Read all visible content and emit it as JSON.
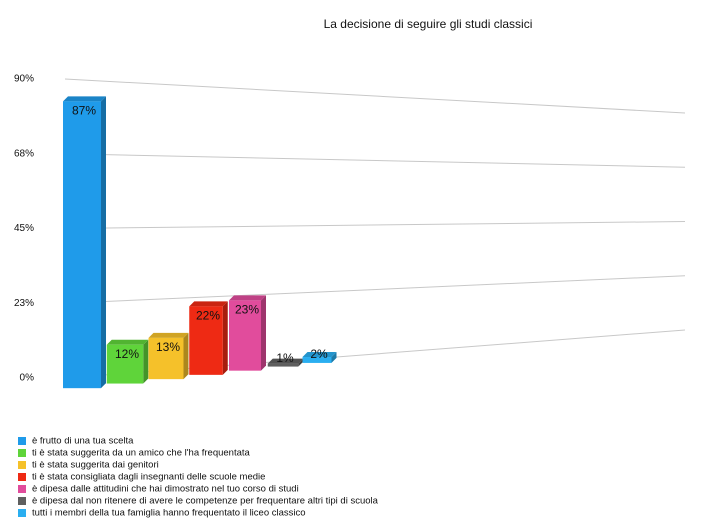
{
  "chart_data": {
    "type": "bar",
    "title": "La decisione di seguire gli studi classici",
    "ylim": [
      0,
      90
    ],
    "yticks": [
      {
        "value": 0,
        "label": "0%"
      },
      {
        "value": 22.5,
        "label": "23%"
      },
      {
        "value": 45,
        "label": "45%"
      },
      {
        "value": 67.5,
        "label": "68%"
      },
      {
        "value": 90,
        "label": "90%"
      }
    ],
    "grid": true,
    "legend": "bottom-left",
    "series": [
      {
        "name": "è frutto di una tua scelta",
        "color": "#1f9bea",
        "values": [
          87
        ],
        "value_labels": [
          "87%"
        ]
      },
      {
        "name": "ti è stata suggerita da un amico che l'ha frequentata",
        "color": "#5fd43a",
        "values": [
          12
        ],
        "value_labels": [
          "12%"
        ]
      },
      {
        "name": "ti è stata suggerita dai genitori",
        "color": "#f5c12a",
        "values": [
          13
        ],
        "value_labels": [
          "13%"
        ]
      },
      {
        "name": "ti è stata consigliata dagli insegnanti delle scuole medie",
        "color": "#ee2a14",
        "values": [
          22
        ],
        "value_labels": [
          "22%"
        ]
      },
      {
        "name": "è dipesa dalle attitudini che hai dimostrato nel tuo corso di studi",
        "color": "#e14c9c",
        "values": [
          23
        ],
        "value_labels": [
          "23%"
        ]
      },
      {
        "name": "è dipesa dal non ritenere di avere le competenze per frequentare altri tipi di scuola",
        "color": "#5f5f5f",
        "values": [
          1
        ],
        "value_labels": [
          "1%"
        ]
      },
      {
        "name": "tutti i membri della tua famiglia hanno frequentato il liceo classico",
        "color": "#2aaef0",
        "values": [
          2
        ],
        "value_labels": [
          "2%"
        ]
      }
    ]
  }
}
